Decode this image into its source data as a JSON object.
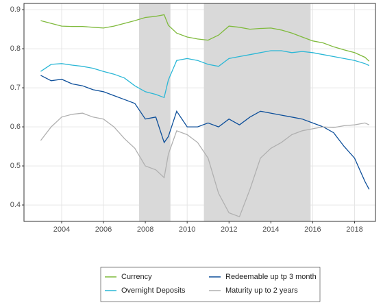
{
  "chart_data": {
    "type": "line",
    "x": [
      2003,
      2003.5,
      2004,
      2004.5,
      2005,
      2005.5,
      2006,
      2006.5,
      2007,
      2007.5,
      2008,
      2008.5,
      2008.9,
      2009.1,
      2009.5,
      2010,
      2010.5,
      2011,
      2011.5,
      2012,
      2012.5,
      2013,
      2013.5,
      2014,
      2014.5,
      2015,
      2015.5,
      2016,
      2016.5,
      2017,
      2017.5,
      2018,
      2018.5,
      2018.7
    ],
    "series": [
      {
        "name": "Currency",
        "color": "#7fba3c",
        "values": [
          0.872,
          0.865,
          0.858,
          0.857,
          0.857,
          0.855,
          0.853,
          0.858,
          0.865,
          0.872,
          0.88,
          0.883,
          0.887,
          0.86,
          0.84,
          0.83,
          0.825,
          0.822,
          0.835,
          0.858,
          0.855,
          0.85,
          0.852,
          0.853,
          0.848,
          0.84,
          0.83,
          0.82,
          0.815,
          0.805,
          0.797,
          0.79,
          0.778,
          0.768
        ]
      },
      {
        "name": "Overnight Deposits",
        "color": "#2ab7d6",
        "values": [
          0.742,
          0.76,
          0.762,
          0.758,
          0.755,
          0.75,
          0.742,
          0.735,
          0.725,
          0.705,
          0.69,
          0.683,
          0.675,
          0.72,
          0.77,
          0.775,
          0.77,
          0.76,
          0.755,
          0.775,
          0.78,
          0.785,
          0.79,
          0.795,
          0.795,
          0.79,
          0.793,
          0.79,
          0.785,
          0.78,
          0.775,
          0.77,
          0.762,
          0.757
        ]
      },
      {
        "name": "Redeemable up tp 3 month",
        "color": "#0d4f9a",
        "values": [
          0.732,
          0.718,
          0.722,
          0.71,
          0.705,
          0.695,
          0.69,
          0.68,
          0.67,
          0.66,
          0.62,
          0.625,
          0.56,
          0.575,
          0.64,
          0.6,
          0.6,
          0.61,
          0.6,
          0.62,
          0.605,
          0.625,
          0.64,
          0.635,
          0.63,
          0.625,
          0.62,
          0.61,
          0.6,
          0.585,
          0.55,
          0.52,
          0.46,
          0.44
        ]
      },
      {
        "name": "Maturity up to 2 years",
        "color": "#b0b0b0",
        "values": [
          0.565,
          0.6,
          0.625,
          0.632,
          0.635,
          0.625,
          0.62,
          0.6,
          0.57,
          0.545,
          0.5,
          0.49,
          0.47,
          0.53,
          0.59,
          0.58,
          0.56,
          0.52,
          0.43,
          0.38,
          0.37,
          0.44,
          0.52,
          0.545,
          0.56,
          0.58,
          0.59,
          0.595,
          0.6,
          0.598,
          0.603,
          0.605,
          0.61,
          0.605
        ]
      }
    ],
    "shaded": [
      [
        2007.7,
        2009.2
      ],
      [
        2010.8,
        2015.9
      ]
    ],
    "xlim": [
      2002.2,
      2019.0
    ],
    "xticks": [
      2004,
      2006,
      2008,
      2010,
      2012,
      2014,
      2016,
      2018
    ],
    "ylim": [
      0.358,
      0.916
    ],
    "yticks": [
      0.4,
      0.5,
      0.6,
      0.7,
      0.8,
      0.9
    ],
    "grid": true,
    "legend": "bottom"
  }
}
